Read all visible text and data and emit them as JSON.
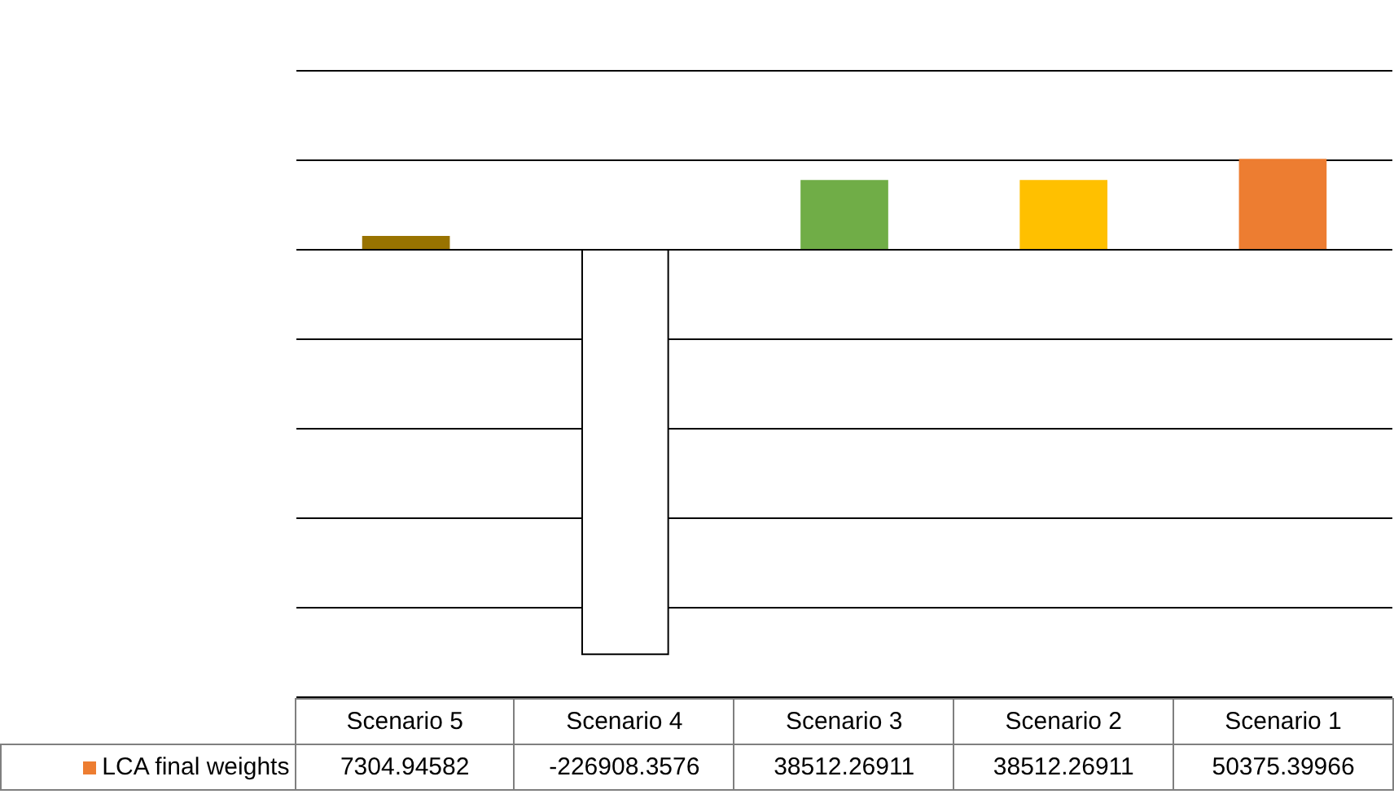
{
  "chart_data": {
    "type": "bar",
    "categories": [
      "Scenario 5",
      "Scenario 4",
      "Scenario 3",
      "Scenario 2",
      "Scenario 1"
    ],
    "series": [
      {
        "name": "LCA final weights",
        "values": [
          7304.94582,
          -226908.3576,
          38512.26911,
          38512.26911,
          50375.39966
        ]
      }
    ],
    "colors": [
      "#997300",
      "#ffffff",
      "#70ad47",
      "#ffc000",
      "#ed7d31"
    ],
    "ylim": [
      -250000,
      100000
    ],
    "yticks": [
      {
        "value": -250000,
        "label": null
      },
      {
        "value": -200000,
        "label": null
      },
      {
        "value": -150000,
        "label": null
      },
      {
        "value": -100000,
        "label": null
      },
      {
        "value": -50000,
        "label": null
      },
      {
        "value": 0,
        "label": null
      },
      {
        "value": 50000,
        "label": null
      },
      {
        "value": 100000,
        "label": null
      }
    ],
    "grid": "y",
    "tick_labels": "x",
    "data_labels": true,
    "legend": "bottom left"
  }
}
